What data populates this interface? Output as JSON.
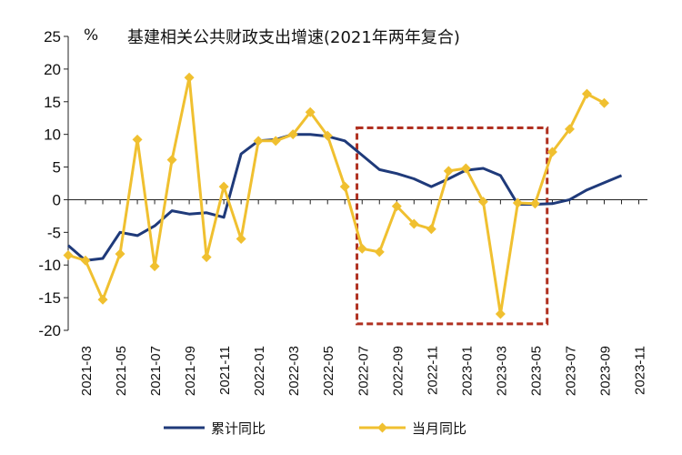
{
  "chart_data": {
    "type": "line",
    "title": "基建相关公共财政支出增速(2021年两年复合)",
    "ylabel": "%",
    "ylim": [
      -20,
      25
    ],
    "yticks": [
      25,
      20,
      15,
      10,
      5,
      0,
      -5,
      -10,
      -15,
      -20
    ],
    "x": [
      "2021-02",
      "2021-03",
      "2021-04",
      "2021-05",
      "2021-06",
      "2021-07",
      "2021-08",
      "2021-09",
      "2021-10",
      "2021-11",
      "2021-12",
      "2022-01",
      "2022-02",
      "2022-03",
      "2022-04",
      "2022-05",
      "2022-06",
      "2022-07",
      "2022-08",
      "2022-09",
      "2022-10",
      "2022-11",
      "2022-12",
      "2023-01",
      "2023-02",
      "2023-03",
      "2023-04",
      "2023-05",
      "2023-06",
      "2023-07",
      "2023-08",
      "2023-09",
      "2023-10",
      "2023-11"
    ],
    "xtick_labels": [
      "2021-03",
      "2021-05",
      "2021-07",
      "2021-09",
      "2021-11",
      "2022-01",
      "2022-03",
      "2022-05",
      "2022-07",
      "2022-09",
      "2022-11",
      "2023-01",
      "2023-03",
      "2023-05",
      "2023-07",
      "2023-09",
      "2023-11"
    ],
    "series": [
      {
        "name": "累计同比",
        "color": "#1f3a7a",
        "values": [
          -7,
          -9.3,
          -9,
          -5,
          -5.5,
          -4,
          -1.7,
          -2.2,
          -2,
          -2.7,
          7,
          9,
          9.2,
          10,
          10,
          9.7,
          9,
          6.8,
          4.6,
          4,
          3.2,
          2,
          3.2,
          4.5,
          4.8,
          3.7,
          -0.7,
          -0.7,
          -0.6,
          0,
          1.5,
          2.6,
          3.7,
          null
        ]
      },
      {
        "name": "当月同比",
        "color": "#f0c030",
        "values": [
          -8.5,
          -9.3,
          -15.3,
          -8.3,
          9.2,
          -10.2,
          6.1,
          18.7,
          -8.8,
          2,
          -6,
          9,
          9,
          10,
          13.4,
          9.8,
          2,
          -7.5,
          -8,
          -1,
          -3.7,
          -4.5,
          4.4,
          4.8,
          -0.3,
          -17.5,
          -0.5,
          -0.6,
          7.3,
          10.8,
          16.2,
          14.8,
          null,
          null
        ]
      }
    ],
    "highlight_box": {
      "x_start": "2022-07",
      "x_end": "2023-05",
      "y_top": 11,
      "y_bottom": -19,
      "color": "#b03020",
      "style": "dashed"
    },
    "legend_position": "bottom",
    "grid": false
  }
}
